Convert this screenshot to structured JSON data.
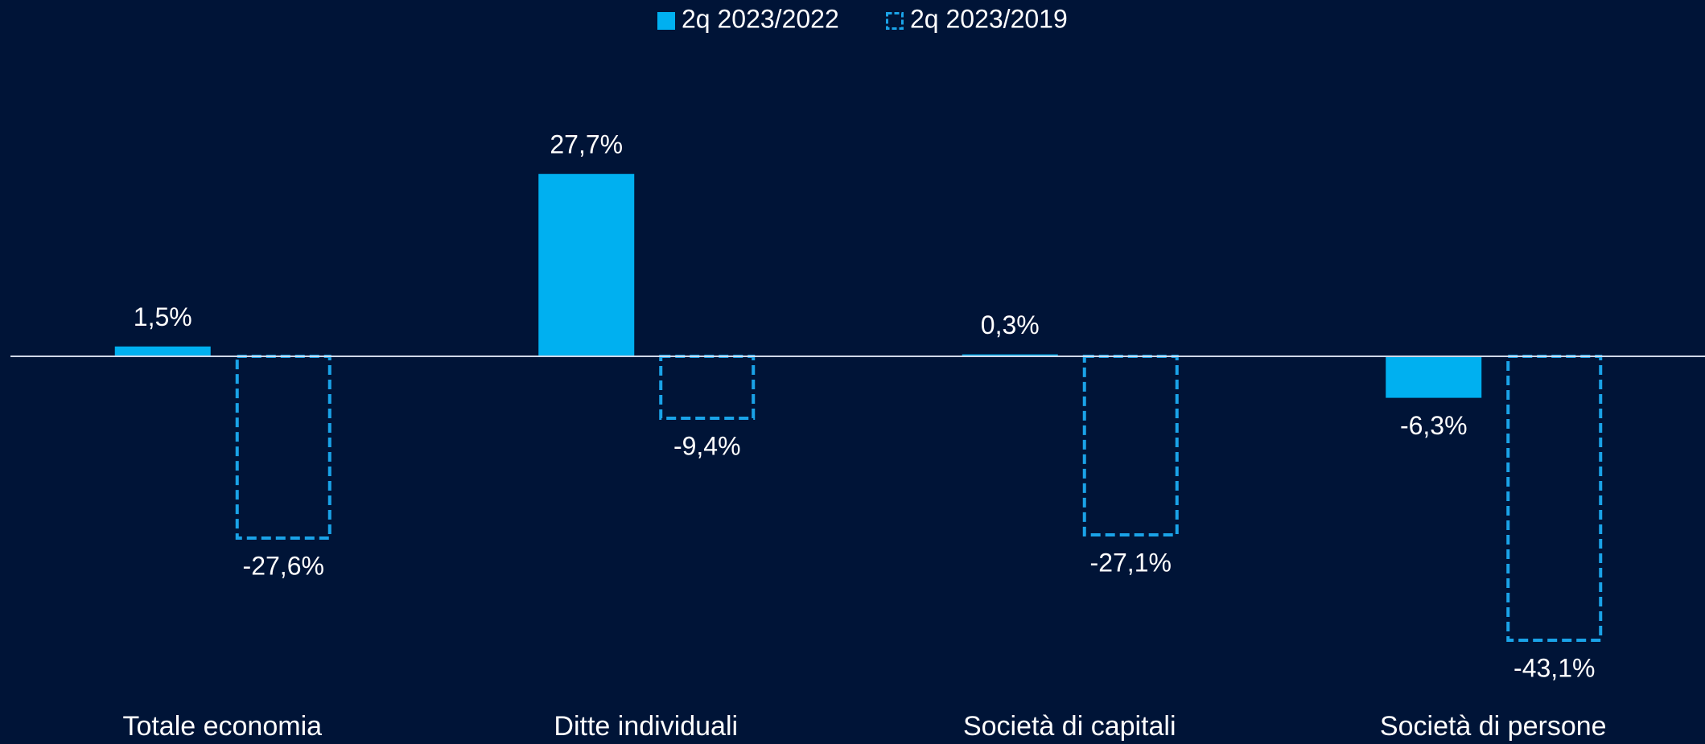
{
  "chart_data": {
    "type": "bar",
    "categories": [
      "Totale economia",
      "Ditte individuali",
      "Società di capitali",
      "Società di persone"
    ],
    "series": [
      {
        "name": "2q 2023/2022",
        "color": "#00b0f0",
        "style": "solid",
        "values": [
          1.5,
          27.7,
          0.3,
          -6.3
        ],
        "value_labels": [
          "1,5%",
          "27,7%",
          "0,3%",
          "-6,3%"
        ]
      },
      {
        "name": "2q 2023/2019",
        "color": "#1aa3e8",
        "style": "dashed",
        "values": [
          -27.6,
          -9.4,
          -27.1,
          -43.1
        ],
        "value_labels": [
          "-27,6%",
          "-9,4%",
          "-27,1%",
          "-43,1%"
        ]
      }
    ],
    "ylim": [
      -50,
      45
    ],
    "legend": "top"
  }
}
